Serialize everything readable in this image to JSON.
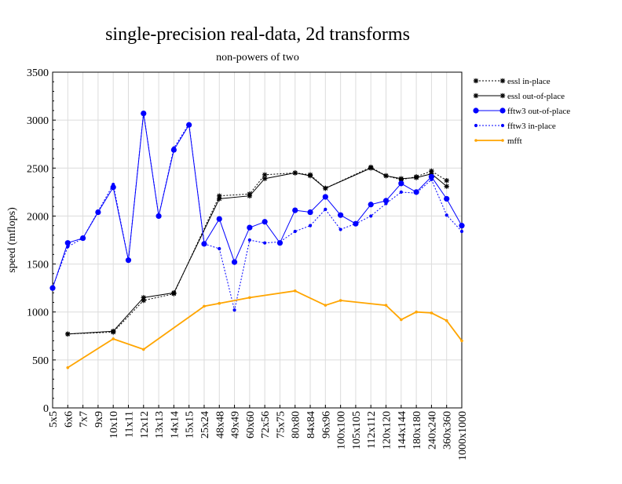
{
  "chart_data": {
    "type": "line",
    "title": "single-precision real-data, 2d transforms",
    "subtitle": "non-powers of two",
    "xlabel": "",
    "ylabel": "speed (mflops)",
    "ylim": [
      0,
      3500
    ],
    "yticks": [
      0,
      500,
      1000,
      1500,
      2000,
      2500,
      3000,
      3500
    ],
    "grid": true,
    "legend_position": "right",
    "categories": [
      "5x5",
      "6x6",
      "7x7",
      "9x9",
      "10x10",
      "11x11",
      "12x12",
      "13x13",
      "14x14",
      "15x15",
      "25x24",
      "48x48",
      "49x49",
      "60x60",
      "72x56",
      "75x75",
      "80x80",
      "84x84",
      "96x96",
      "100x100",
      "105x105",
      "112x112",
      "120x120",
      "144x144",
      "180x180",
      "240x240",
      "360x360",
      "1000x1000"
    ],
    "series": [
      {
        "name": "essl in-place",
        "color": "#000000",
        "dash": "2,2",
        "marker": "star",
        "values": [
          null,
          770,
          null,
          null,
          790,
          null,
          1120,
          null,
          1190,
          null,
          null,
          2210,
          null,
          2230,
          2430,
          null,
          2450,
          2430,
          2290,
          null,
          null,
          2510,
          2420,
          2380,
          2410,
          2470,
          2370,
          null
        ]
      },
      {
        "name": "essl out-of-place",
        "color": "#000000",
        "dash": "",
        "marker": "star",
        "values": [
          null,
          770,
          null,
          null,
          800,
          null,
          1150,
          null,
          1200,
          null,
          null,
          2180,
          null,
          2210,
          2390,
          null,
          2450,
          2420,
          2290,
          null,
          null,
          2500,
          2420,
          2390,
          2400,
          2440,
          2310,
          null
        ]
      },
      {
        "name": "fftw3 out-of-place",
        "color": "#0000ff",
        "dash": "",
        "marker": "circle-large",
        "values": [
          1250,
          1720,
          1770,
          2040,
          2300,
          1540,
          3070,
          2000,
          2690,
          2950,
          1710,
          1970,
          1520,
          1880,
          1940,
          1720,
          2060,
          2040,
          2200,
          2010,
          1920,
          2120,
          2160,
          2340,
          2250,
          2410,
          2180,
          1900
        ]
      },
      {
        "name": "fftw3 in-place",
        "color": "#0000ff",
        "dash": "2,2",
        "marker": "circle-small",
        "values": [
          1260,
          1680,
          1770,
          2050,
          2330,
          1540,
          3080,
          2000,
          2710,
          2960,
          1710,
          1660,
          1020,
          1750,
          1720,
          1730,
          1840,
          1900,
          2070,
          1860,
          1920,
          2000,
          2130,
          2250,
          2240,
          2380,
          2010,
          1840
        ]
      },
      {
        "name": "mfft",
        "color": "#ffa500",
        "dash": "",
        "marker": "dot",
        "values": [
          null,
          420,
          null,
          null,
          720,
          null,
          610,
          null,
          null,
          null,
          1060,
          1090,
          null,
          1150,
          null,
          null,
          1220,
          null,
          1070,
          1120,
          null,
          null,
          1070,
          920,
          1000,
          990,
          910,
          700
        ]
      }
    ]
  }
}
